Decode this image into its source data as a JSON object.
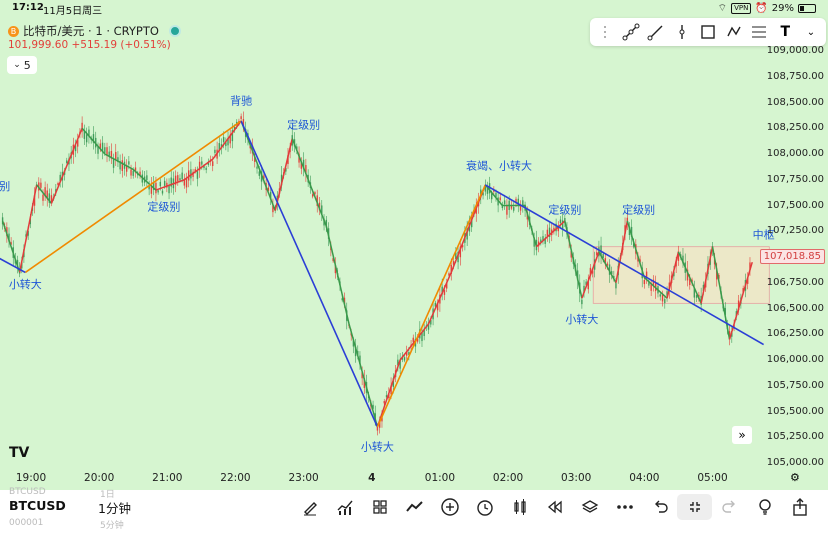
{
  "status_bar": {
    "time": "17:12",
    "date": "11月5日周三",
    "vpn": "VPN",
    "battery": "29%"
  },
  "symbol": {
    "name": "比特币/美元 · 1 · CRYPTO",
    "coin_glyph": "B",
    "price": "101,999.60",
    "change": "+515.19 (+0.51%)"
  },
  "interval_chip": {
    "value": "5"
  },
  "current_price": "107,018.85",
  "tv_logo": "TV",
  "colors": {
    "background": "#d6f5d0",
    "up": "#e2403a",
    "down": "#3f9b5a",
    "zigzag_up": "#e23a3a",
    "zigzag_down": "#3a9a4a",
    "trend_orange": "#f08a00",
    "trend_blue": "#2b3fd6",
    "box_fill": "#f3e3c6"
  },
  "chart_data": {
    "type": "line",
    "x_ticks": [
      "19:00",
      "20:00",
      "21:00",
      "22:00",
      "23:00",
      "4",
      "01:00",
      "02:00",
      "03:00",
      "04:00",
      "05:00"
    ],
    "y_ticks": [
      "109,000.00",
      "108,750.00",
      "108,500.00",
      "108,250.00",
      "108,000.00",
      "107,750.00",
      "107,500.00",
      "107,250.00",
      "107,000.00",
      "106,750.00",
      "106,500.00",
      "106,250.00",
      "106,000.00",
      "105,750.00",
      "105,500.00",
      "105,250.00",
      "105,000.00"
    ],
    "ylim": [
      105000,
      109000
    ],
    "series": [
      {
        "values": [
          [
            "18:35",
            107350
          ],
          [
            "18:50",
            106850
          ],
          [
            "19:05",
            107700
          ],
          [
            "19:18",
            107520
          ],
          [
            "19:45",
            108250
          ],
          [
            "20:05",
            108000
          ],
          [
            "20:30",
            107850
          ],
          [
            "20:50",
            107650
          ],
          [
            "21:15",
            107750
          ],
          [
            "21:40",
            107950
          ],
          [
            "22:05",
            108320
          ],
          [
            "22:35",
            107450
          ],
          [
            "22:50",
            108150
          ],
          [
            "23:20",
            107300
          ],
          [
            "23:40",
            106350
          ],
          [
            "00:05",
            105350
          ],
          [
            "00:25",
            106000
          ],
          [
            "00:50",
            106350
          ],
          [
            "01:10",
            106850
          ],
          [
            "01:40",
            107700
          ],
          [
            "01:55",
            107500
          ],
          [
            "02:15",
            107500
          ],
          [
            "02:25",
            107100
          ],
          [
            "02:50",
            107350
          ],
          [
            "03:05",
            106600
          ],
          [
            "03:20",
            107050
          ],
          [
            "03:35",
            106750
          ],
          [
            "03:45",
            107350
          ],
          [
            "04:00",
            106800
          ],
          [
            "04:20",
            106600
          ],
          [
            "04:30",
            107050
          ],
          [
            "04:50",
            106550
          ],
          [
            "05:00",
            107100
          ],
          [
            "05:15",
            106200
          ],
          [
            "05:35",
            106950
          ]
        ]
      }
    ],
    "trend_lines": [
      {
        "color": "orange",
        "from": [
          "18:55",
          106850
        ],
        "to": [
          "22:05",
          108320
        ]
      },
      {
        "color": "blue",
        "from": [
          "18:30",
          107000
        ],
        "to": [
          "18:55",
          106850
        ]
      },
      {
        "color": "blue",
        "from": [
          "22:05",
          108320
        ],
        "to": [
          "00:05",
          105350
        ]
      },
      {
        "color": "orange",
        "from": [
          "00:05",
          105350
        ],
        "to": [
          "01:40",
          107700
        ]
      },
      {
        "color": "blue",
        "from": [
          "01:40",
          107700
        ],
        "to": [
          "05:45",
          106150
        ]
      }
    ],
    "box": {
      "from": [
        "03:15",
        107100
      ],
      "to": [
        "05:50",
        106550
      ]
    },
    "annotations": [
      {
        "text": "级别",
        "x": "18:32",
        "y": 107650
      },
      {
        "text": "小转大",
        "x": "18:55",
        "y": 106700
      },
      {
        "text": "定级别",
        "x": "20:57",
        "y": 107450
      },
      {
        "text": "背驰",
        "x": "22:05",
        "y": 108480
      },
      {
        "text": "定级别",
        "x": "23:00",
        "y": 108250
      },
      {
        "text": "小转大",
        "x": "00:05",
        "y": 105120
      },
      {
        "text": "衰竭、小转大",
        "x": "01:52",
        "y": 107850
      },
      {
        "text": "定级别",
        "x": "02:50",
        "y": 107420
      },
      {
        "text": "定级别",
        "x": "03:55",
        "y": 107420
      },
      {
        "text": "小转大",
        "x": "03:05",
        "y": 106360
      },
      {
        "text": "中枢",
        "x": "05:45",
        "y": 107180
      }
    ]
  },
  "drawing_toolbar": {
    "icons": [
      "drag-handle-icon",
      "trend-line-icon",
      "ray-icon",
      "vertical-line-icon",
      "rectangle-icon",
      "path-icon",
      "fib-icon",
      "text-icon",
      "dropdown-icon"
    ]
  },
  "bottom_bar": {
    "ticker": "BTCUSD",
    "interval": "1分钟",
    "ghost_ticker": "BTCUSD",
    "ghost_interval": "1日",
    "ghost_ticker_2": "000001",
    "ghost_interval_2": "5分钟",
    "icons": [
      "pencil-icon",
      "indicators-icon",
      "grid-icon",
      "strategy-icon",
      "add-icon",
      "alarm-icon",
      "candles-icon",
      "replay-icon",
      "layers-icon",
      "more-icon",
      "undo-icon",
      "collapse-icon",
      "redo-icon",
      "bulb-icon",
      "share-icon"
    ]
  }
}
